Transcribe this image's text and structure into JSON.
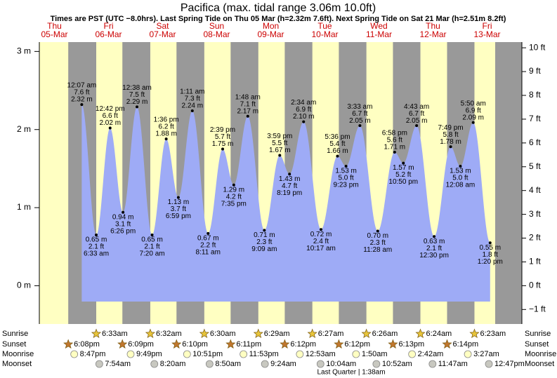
{
  "chart_data": {
    "type": "tide",
    "title": "Pacifica (max. tidal range 3.06m 10.0ft)",
    "subtitle": "Times are PST (UTC −8.0hrs). Last Spring Tide on Thu 05 Mar (h=2.32m 7.6ft). Next Spring Tide on Sat 21 Mar (h=2.51m 8.2ft)",
    "colors": {
      "water": "#9eabf6",
      "day": "#ffffc2",
      "night": "#999999",
      "header": "#cc0000"
    },
    "ylim": [
      -0.49,
      3.12
    ],
    "yticks": [
      {
        "value": 0,
        "label": "0 m"
      },
      {
        "value": 1,
        "label": "1 m"
      },
      {
        "value": 2,
        "label": "2 m"
      },
      {
        "value": 3,
        "label": "3 m"
      }
    ],
    "y2lim": [
      -1.61,
      10.24
    ],
    "y2ticks": [
      {
        "value": -1,
        "label": "−1 ft"
      },
      {
        "value": 0,
        "label": "0 ft"
      },
      {
        "value": 1,
        "label": "1 ft"
      },
      {
        "value": 2,
        "label": "2 ft"
      },
      {
        "value": 3,
        "label": "3 ft"
      },
      {
        "value": 4,
        "label": "4 ft"
      },
      {
        "value": 5,
        "label": "5 ft"
      },
      {
        "value": 6,
        "label": "6 ft"
      },
      {
        "value": 7,
        "label": "7 ft"
      },
      {
        "value": 8,
        "label": "8 ft"
      },
      {
        "value": 9,
        "label": "9 ft"
      },
      {
        "value": 10,
        "label": "10 ft"
      }
    ],
    "row_labels": {
      "sunrise": "Sunrise",
      "sunset": "Sunset",
      "moonrise": "Moonrise",
      "moonset": "Moonset"
    },
    "days": [
      {
        "weekday": "Thu",
        "date": "05-Mar",
        "sunset": "6:08pm",
        "moonrise": "8:47pm"
      },
      {
        "weekday": "Fri",
        "date": "06-Mar",
        "sunrise": "6:33am",
        "sunset": "6:09pm",
        "moonrise": "9:49pm",
        "moonset": "7:54am",
        "tides": [
          {
            "time": "12:07 am",
            "height": 2.32,
            "label_m": "2.32 m",
            "label_ft": "7.6 ft"
          },
          {
            "time": "6:33 am",
            "height": 0.65,
            "label_m": "0.65 m",
            "label_ft": "2.1 ft"
          },
          {
            "time": "12:42 pm",
            "height": 2.02,
            "label_m": "2.02 m",
            "label_ft": "6.6 ft"
          },
          {
            "time": "6:26 pm",
            "height": 0.94,
            "label_m": "0.94 m",
            "label_ft": "3.1 ft"
          }
        ]
      },
      {
        "weekday": "Sat",
        "date": "07-Mar",
        "sunrise": "6:32am",
        "sunset": "6:10pm",
        "moonrise": "10:51pm",
        "moonset": "8:20am",
        "tides": [
          {
            "time": "12:38 am",
            "height": 2.29,
            "label_m": "2.29 m",
            "label_ft": "7.5 ft"
          },
          {
            "time": "7:20 am",
            "height": 0.65,
            "label_m": "0.65 m",
            "label_ft": "2.1 ft"
          },
          {
            "time": "1:36 pm",
            "height": 1.88,
            "label_m": "1.88 m",
            "label_ft": "6.2 ft"
          },
          {
            "time": "6:59 pm",
            "height": 1.13,
            "label_m": "1.13 m",
            "label_ft": "3.7 ft"
          }
        ]
      },
      {
        "weekday": "Sun",
        "date": "08-Mar",
        "sunrise": "6:30am",
        "sunset": "6:11pm",
        "moonrise": "11:53pm",
        "moonset": "8:50am",
        "tides": [
          {
            "time": "1:11 am",
            "height": 2.24,
            "label_m": "2.24 m",
            "label_ft": "7.3 ft"
          },
          {
            "time": "8:11 am",
            "height": 0.67,
            "label_m": "0.67 m",
            "label_ft": "2.2 ft"
          },
          {
            "time": "2:39 pm",
            "height": 1.75,
            "label_m": "1.75 m",
            "label_ft": "5.7 ft"
          },
          {
            "time": "7:35 pm",
            "height": 1.29,
            "label_m": "1.29 m",
            "label_ft": "4.2 ft"
          }
        ]
      },
      {
        "weekday": "Mon",
        "date": "09-Mar",
        "sunrise": "6:29am",
        "sunset": "6:12pm",
        "moonset": "9:24am",
        "tides": [
          {
            "time": "1:48 am",
            "height": 2.17,
            "label_m": "2.17 m",
            "label_ft": "7.1 ft"
          },
          {
            "time": "9:09 am",
            "height": 0.71,
            "label_m": "0.71 m",
            "label_ft": "2.3 ft"
          },
          {
            "time": "3:59 pm",
            "height": 1.67,
            "label_m": "1.67 m",
            "label_ft": "5.5 ft"
          },
          {
            "time": "8:19 pm",
            "height": 1.43,
            "label_m": "1.43 m",
            "label_ft": "4.7 ft"
          }
        ]
      },
      {
        "weekday": "Tue",
        "date": "10-Mar",
        "sunrise": "6:27am",
        "sunset": "6:12pm",
        "moonrise": "12:53am",
        "moonset": "10:04am",
        "tides": [
          {
            "time": "2:34 am",
            "height": 2.1,
            "label_m": "2.10 m",
            "label_ft": "6.9 ft"
          },
          {
            "time": "10:17 am",
            "height": 0.72,
            "label_m": "0.72 m",
            "label_ft": "2.4 ft"
          },
          {
            "time": "5:36 pm",
            "height": 1.66,
            "label_m": "1.66 m",
            "label_ft": "5.4 ft"
          },
          {
            "time": "9:23 pm",
            "height": 1.53,
            "label_m": "1.53 m",
            "label_ft": "5.0 ft"
          }
        ]
      },
      {
        "weekday": "Wed",
        "date": "11-Mar",
        "sunrise": "6:26am",
        "sunset": "6:13pm",
        "moonrise": "1:50am",
        "moonset": "10:52am",
        "tides": [
          {
            "time": "3:33 am",
            "height": 2.05,
            "label_m": "2.05 m",
            "label_ft": "6.7 ft"
          },
          {
            "time": "11:28 am",
            "height": 0.7,
            "label_m": "0.70 m",
            "label_ft": "2.3 ft"
          },
          {
            "time": "6:58 pm",
            "height": 1.71,
            "label_m": "1.71 m",
            "label_ft": "5.6 ft"
          },
          {
            "time": "10:50 pm",
            "height": 1.57,
            "label_m": "1.57 m",
            "label_ft": "5.2 ft"
          }
        ]
      },
      {
        "weekday": "Thu",
        "date": "12-Mar",
        "sunrise": "6:24am",
        "sunset": "6:14pm",
        "moonrise": "2:42am",
        "moonset": "11:47am",
        "tides": [
          {
            "time": "4:43 am",
            "height": 2.05,
            "label_m": "2.05 m",
            "label_ft": "6.7 ft"
          },
          {
            "time": "12:30 pm",
            "height": 0.63,
            "label_m": "0.63 m",
            "label_ft": "2.1 ft"
          },
          {
            "time": "7:49 pm",
            "height": 1.78,
            "label_m": "1.78 m",
            "label_ft": "5.8 ft"
          }
        ]
      },
      {
        "weekday": "Fri",
        "date": "13-Mar",
        "sunrise": "6:23am",
        "moonrise": "3:27am",
        "moonset": "12:47pm",
        "tides": [
          {
            "time": "12:08 am",
            "height": 1.53,
            "label_m": "1.53 m",
            "label_ft": "5.0 ft"
          },
          {
            "time": "5:50 am",
            "height": 2.09,
            "label_m": "2.09 m",
            "label_ft": "6.9 ft"
          },
          {
            "time": "1:20 pm",
            "height": 0.55,
            "label_m": "0.55 m",
            "label_ft": "1.8 ft"
          }
        ]
      }
    ],
    "moon_phase": "Last Quarter | 1:38am"
  }
}
